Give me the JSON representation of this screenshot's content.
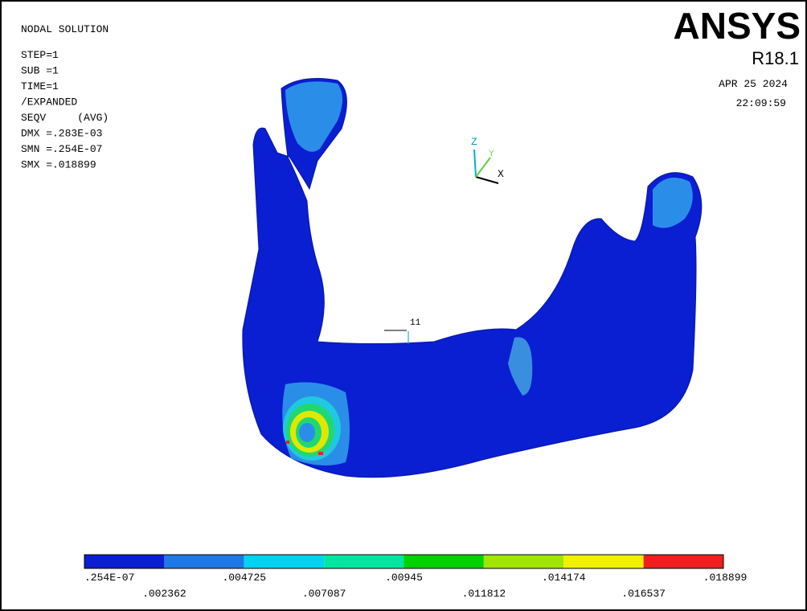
{
  "info": {
    "title": "NODAL SOLUTION",
    "lines": [
      "STEP=1",
      "SUB =1",
      "TIME=1",
      "/EXPANDED",
      "SEQV     (AVG)",
      "DMX =.283E-03",
      "SMN =.254E-07",
      "SMX =.018899"
    ]
  },
  "logo": {
    "name": "ANSYS",
    "version": "R18.1",
    "date": "APR 25 2024",
    "time": "22:09:59"
  },
  "triad": {
    "z": "Z",
    "y": "Y",
    "x": "X"
  },
  "node_label": "11",
  "legend": {
    "colors": [
      "#0a1ed2",
      "#1e78e6",
      "#00d2f0",
      "#00e6a0",
      "#00d200",
      "#a0e600",
      "#f0f000",
      "#f01e1e"
    ],
    "labels": [
      ".254E-07",
      ".002362",
      ".004725",
      ".007087",
      ".00945",
      ".011812",
      ".014174",
      ".016537",
      ".018899"
    ]
  }
}
